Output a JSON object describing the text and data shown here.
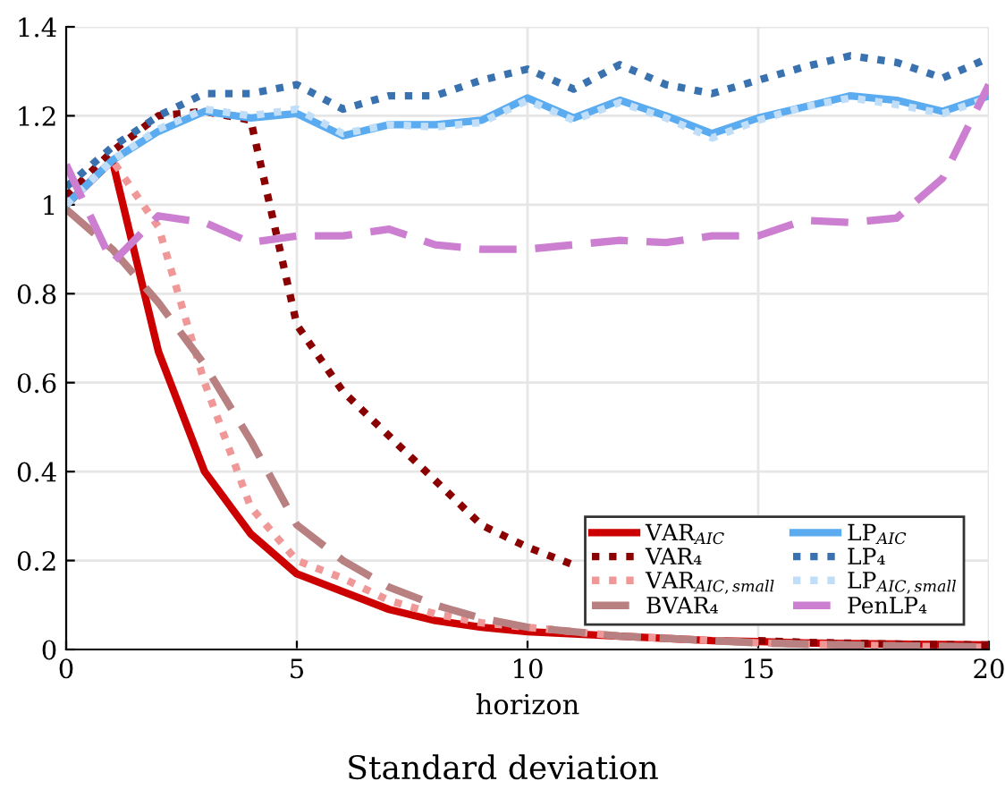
{
  "chart_data": {
    "type": "line",
    "title": "Standard deviation",
    "xlabel": "horizon",
    "x": [
      0,
      1,
      2,
      3,
      4,
      5,
      6,
      7,
      8,
      9,
      10,
      11,
      12,
      13,
      14,
      15,
      16,
      17,
      18,
      19,
      20
    ],
    "xlim": [
      0,
      20
    ],
    "xticks": [
      0,
      5,
      10,
      15,
      20
    ],
    "ylim": [
      0,
      1.4
    ],
    "yticks": [
      0,
      0.2,
      0.4,
      0.6,
      0.8,
      1,
      1.2,
      1.4
    ],
    "grid": true,
    "legend": "bottom right",
    "series": [
      {
        "name": "VAR$_{AIC}$",
        "color": "#cc0000",
        "line_style": "solid",
        "values": [
          1.0,
          1.1,
          0.67,
          0.4,
          0.26,
          0.17,
          0.13,
          0.09,
          0.065,
          0.05,
          0.04,
          0.035,
          0.03,
          0.025,
          0.02,
          0.018,
          0.015,
          0.013,
          0.012,
          0.011,
          0.01
        ]
      },
      {
        "name": "VAR₄",
        "color": "#8b0000",
        "line_style": "dotted",
        "values": [
          1.02,
          1.12,
          1.2,
          1.21,
          1.19,
          0.73,
          0.58,
          0.48,
          0.38,
          0.28,
          0.23,
          0.19,
          null,
          null,
          null,
          0.02,
          0.016,
          0.014,
          0.012,
          0.011,
          0.01
        ]
      },
      {
        "name": "VAR$_{AIC,small}$",
        "color": "#f09898",
        "line_style": "dotted",
        "values": [
          1.0,
          1.1,
          0.95,
          0.6,
          0.32,
          0.2,
          0.16,
          0.11,
          0.08,
          0.06,
          0.05,
          0.04,
          0.03,
          0.025,
          0.02,
          0.015,
          0.012,
          0.01,
          0.008,
          0.006,
          0.005
        ]
      },
      {
        "name": "BVAR₄",
        "color": "#b88080",
        "line_style": "dashed",
        "values": [
          0.99,
          0.9,
          0.78,
          0.64,
          0.47,
          0.28,
          0.2,
          0.14,
          0.1,
          0.07,
          0.05,
          0.04,
          0.03,
          0.025,
          0.02,
          0.015,
          0.012,
          0.01,
          0.008,
          0.007,
          0.006
        ]
      },
      {
        "name": "LP$_{AIC}$",
        "color": "#5aabf0",
        "line_style": "solid",
        "values": [
          1.0,
          1.1,
          1.165,
          1.21,
          1.195,
          1.205,
          1.155,
          1.18,
          1.18,
          1.19,
          1.24,
          1.195,
          1.235,
          1.2,
          1.16,
          1.195,
          1.22,
          1.245,
          1.235,
          1.21,
          1.245
        ]
      },
      {
        "name": "LP₄",
        "color": "#3a72b0",
        "line_style": "dotted",
        "values": [
          1.04,
          1.13,
          1.2,
          1.25,
          1.25,
          1.27,
          1.215,
          1.245,
          1.245,
          1.28,
          1.305,
          1.26,
          1.315,
          1.27,
          1.25,
          1.28,
          1.31,
          1.335,
          1.32,
          1.285,
          1.33
        ]
      },
      {
        "name": "LP$_{AIC,small}$",
        "color": "#c0def8",
        "line_style": "dotted",
        "values": [
          1.0,
          1.1,
          1.17,
          1.215,
          1.2,
          1.215,
          1.16,
          1.18,
          1.175,
          1.185,
          1.235,
          1.19,
          1.23,
          1.195,
          1.15,
          1.19,
          1.22,
          1.24,
          1.225,
          1.205,
          1.24
        ]
      },
      {
        "name": "PenLP₄",
        "color": "#cc7fd0",
        "line_style": "dashed",
        "values": [
          1.09,
          0.87,
          0.975,
          0.96,
          0.915,
          0.93,
          0.93,
          0.945,
          0.91,
          0.9,
          0.9,
          0.91,
          0.92,
          0.915,
          0.93,
          0.93,
          0.965,
          0.96,
          0.97,
          1.06,
          1.27
        ]
      }
    ]
  }
}
